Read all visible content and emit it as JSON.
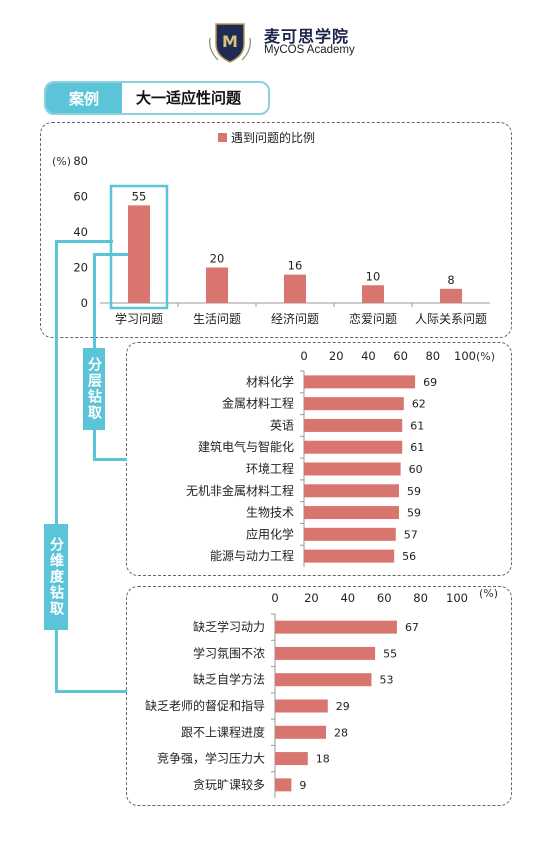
{
  "header": {
    "brand_cn": "麦可思学院",
    "brand_en": "MyCOS Academy",
    "logo_letter": "M"
  },
  "banner": {
    "tag": "案例",
    "title": "大一适应性问题"
  },
  "labels": {
    "drill_layer": "分层钻取",
    "drill_dimension": "分维度钻取"
  },
  "colors": {
    "bar": "#d9756f",
    "accent": "#5bc4d8",
    "accent_light": "#8ad0de"
  },
  "chart_data": [
    {
      "type": "bar",
      "legend": "遇到问题的比例",
      "unit": "(%)",
      "categories": [
        "学习问题",
        "生活问题",
        "经济问题",
        "恋爱问题",
        "人际关系问题"
      ],
      "values": [
        55,
        20,
        16,
        10,
        8
      ],
      "ylim": [
        0,
        80
      ],
      "yticks": [
        "0",
        "20",
        "40",
        "60",
        "80"
      ],
      "highlight": "学习问题"
    },
    {
      "type": "bar",
      "orientation": "horizontal",
      "unit": "(%)",
      "categories": [
        "材料化学",
        "金属材料工程",
        "英语",
        "建筑电气与智能化",
        "环境工程",
        "无机非金属材料工程",
        "生物技术",
        "应用化学",
        "能源与动力工程"
      ],
      "values": [
        69,
        62,
        61,
        61,
        60,
        59,
        59,
        57,
        56
      ],
      "xlim": [
        0,
        100
      ],
      "xticks": [
        "0",
        "20",
        "40",
        "60",
        "80",
        "100"
      ]
    },
    {
      "type": "bar",
      "orientation": "horizontal",
      "unit": "(%)",
      "categories": [
        "缺乏学习动力",
        "学习氛围不浓",
        "缺乏自学方法",
        "缺乏老师的督促和指导",
        "跟不上课程进度",
        "竞争强，学习压力大",
        "贪玩旷课较多"
      ],
      "values": [
        67,
        55,
        53,
        29,
        28,
        18,
        9
      ],
      "xlim": [
        0,
        100
      ],
      "xticks": [
        "0",
        "20",
        "40",
        "60",
        "80",
        "100"
      ]
    }
  ]
}
